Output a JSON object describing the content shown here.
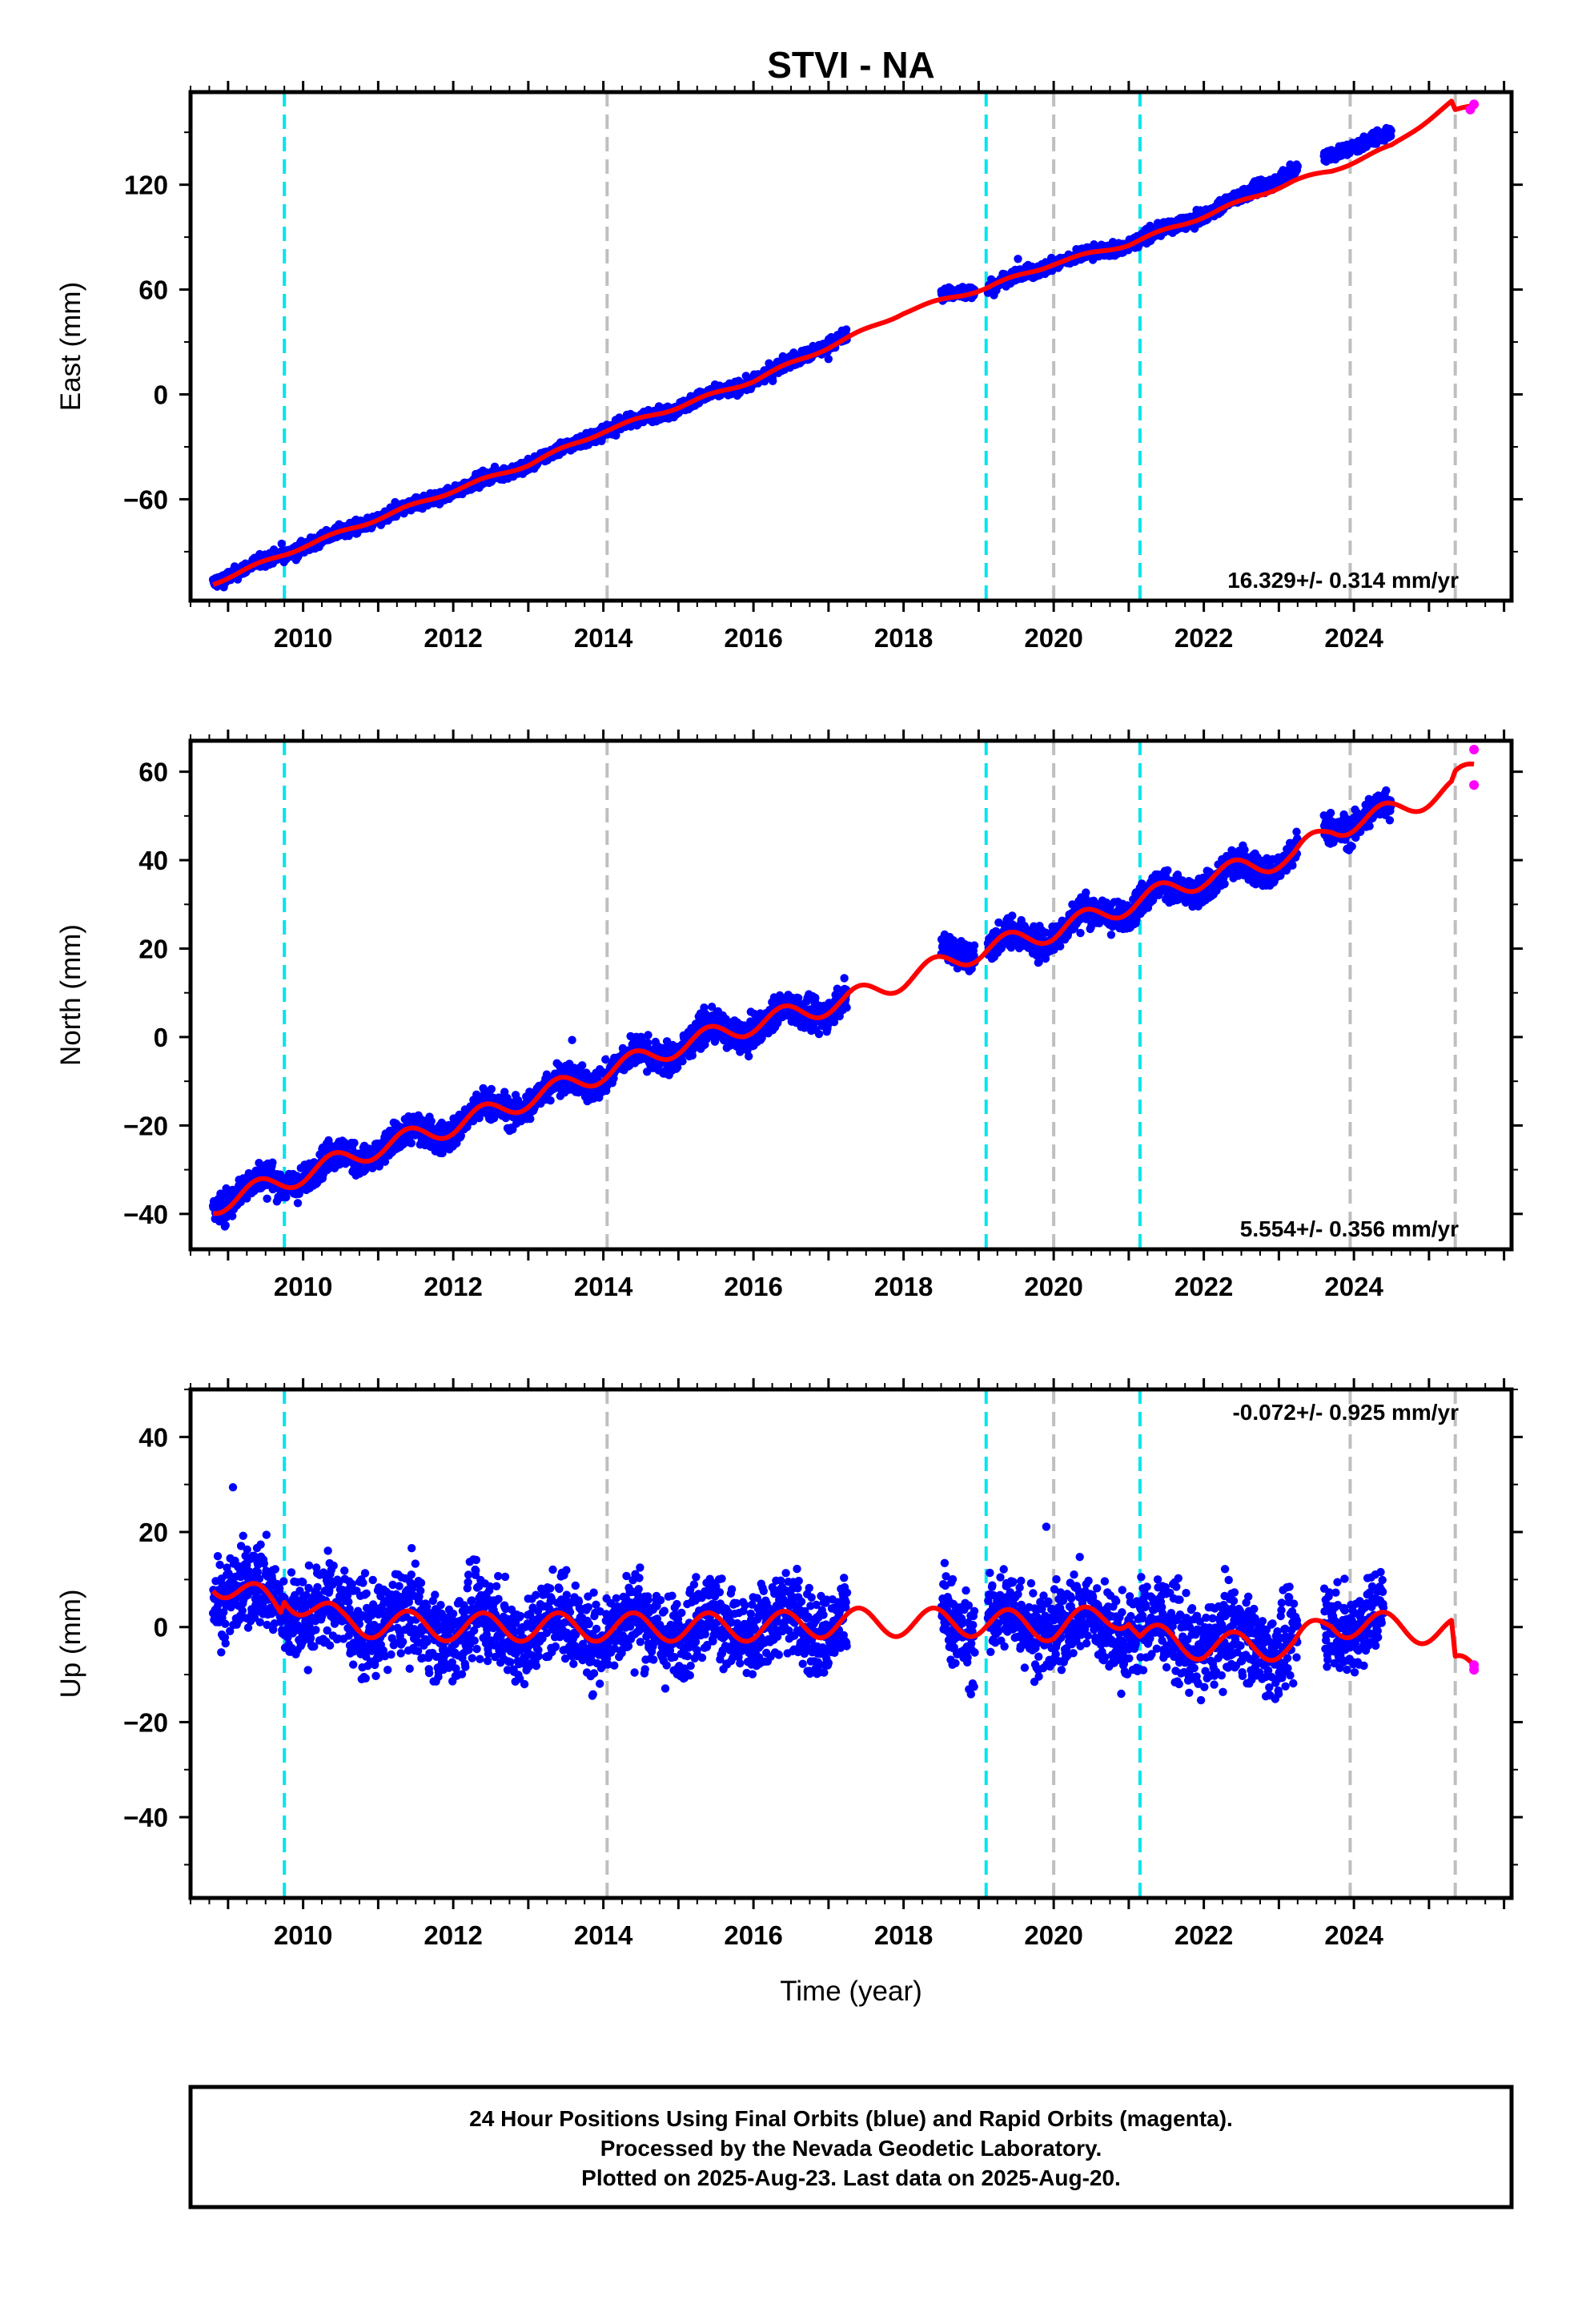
{
  "title": "STVI - NA",
  "xlabel": "Time (year)",
  "footer": {
    "line1": "24 Hour Positions Using Final Orbits (blue) and Rapid Orbits (magenta).",
    "line2": "Processed by the Nevada Geodetic Laboratory.",
    "line3": "Plotted on 2025-Aug-23. Last data on 2025-Aug-20."
  },
  "colors": {
    "final": "#0000ff",
    "rapid": "#ff00ff",
    "model": "#ff0000",
    "equipment_change": "#00e5ee",
    "earthquake": "#bfbfbf"
  },
  "chart_data": [
    {
      "type": "scatter",
      "component": "East",
      "ylabel": "East (mm)",
      "xlim": [
        2008.5,
        2026.1
      ],
      "ylim": [
        -118,
        173
      ],
      "yticks": [
        -60,
        0,
        60,
        120
      ],
      "xticks": [
        2010,
        2012,
        2014,
        2016,
        2018,
        2020,
        2022,
        2024
      ],
      "rate": "16.329+/- 0.314 mm/yr",
      "rate_position": "bottom-right",
      "series": [
        {
          "role": "final",
          "x": [
            2008.8,
            2010.0,
            2011.0,
            2012.0,
            2013.0,
            2014.0,
            2015.0,
            2016.0,
            2017.2,
            2018.6,
            2019.1,
            2020.0,
            2021.0,
            2022.0,
            2023.2,
            2023.7,
            2024.5
          ],
          "y": [
            -107,
            -87,
            -71,
            -55,
            -40,
            -21,
            -7,
            8,
            33,
            58,
            61,
            75,
            86,
            103,
            128,
            138,
            149
          ],
          "noise": 2.6
        },
        {
          "role": "rapid",
          "x": [
            2025.55,
            2025.6
          ],
          "y": [
            163,
            166
          ]
        },
        {
          "role": "model",
          "x": [
            2008.8,
            2010.0,
            2011.0,
            2012.0,
            2013.0,
            2014.0,
            2015.0,
            2016.0,
            2017.2,
            2018.0,
            2018.6,
            2019.1,
            2020.0,
            2021.0,
            2022.0,
            2023.2,
            2023.7,
            2024.5,
            2025.3,
            2025.35,
            2025.6
          ],
          "y": [
            -108,
            -87,
            -71,
            -55,
            -40,
            -21,
            -7,
            8,
            31,
            47,
            55,
            61,
            75,
            86,
            102,
            122,
            128,
            142,
            167,
            162,
            165
          ],
          "seasonal": 1.0
        }
      ],
      "equipment_changes": [
        2009.75,
        2019.1,
        2021.15
      ],
      "earthquakes": [
        2014.05,
        2020.0,
        2023.95,
        2025.35
      ]
    },
    {
      "type": "scatter",
      "component": "North",
      "ylabel": "North (mm)",
      "xlim": [
        2008.5,
        2026.1
      ],
      "ylim": [
        -48,
        67
      ],
      "yticks": [
        -40,
        -20,
        0,
        20,
        40,
        60
      ],
      "xticks": [
        2010,
        2012,
        2014,
        2016,
        2018,
        2020,
        2022,
        2024
      ],
      "rate": "5.554+/- 0.356 mm/yr",
      "rate_position": "bottom-right",
      "series": [
        {
          "role": "final",
          "x": [
            2008.8,
            2010.0,
            2011.0,
            2012.0,
            2013.0,
            2014.0,
            2015.0,
            2016.0,
            2017.2,
            2018.6,
            2019.1,
            2020.0,
            2021.0,
            2022.0,
            2023.2,
            2023.7,
            2024.5
          ],
          "y": [
            -37,
            -31,
            -25,
            -20,
            -14,
            -8,
            -2,
            3,
            8,
            20,
            20,
            24,
            30,
            35,
            41,
            48,
            51
          ],
          "noise": 2.5
        },
        {
          "role": "rapid",
          "x": [
            2025.6,
            2025.6
          ],
          "y": [
            57,
            65
          ]
        },
        {
          "role": "model",
          "x": [
            2008.8,
            2010.0,
            2011.0,
            2012.0,
            2013.0,
            2014.0,
            2015.0,
            2016.0,
            2017.2,
            2018.0,
            2018.6,
            2019.1,
            2020.0,
            2021.0,
            2022.0,
            2023.2,
            2023.7,
            2024.5,
            2025.3,
            2025.35,
            2025.6
          ],
          "y": [
            -38,
            -31,
            -25,
            -20,
            -14,
            -8,
            -2,
            3,
            8,
            13,
            17,
            20,
            24,
            30,
            36,
            41,
            47,
            51,
            56,
            58,
            61
          ],
          "seasonal": 2.3
        }
      ],
      "equipment_changes": [
        2009.75,
        2019.1,
        2021.15
      ],
      "earthquakes": [
        2014.05,
        2020.0,
        2023.95,
        2025.35
      ]
    },
    {
      "type": "scatter",
      "component": "Up",
      "ylabel": "Up (mm)",
      "xlim": [
        2008.5,
        2026.1
      ],
      "ylim": [
        -57,
        50
      ],
      "yticks": [
        -40,
        -20,
        0,
        20,
        40
      ],
      "xticks": [
        2010,
        2012,
        2014,
        2016,
        2018,
        2020,
        2022,
        2024
      ],
      "rate": "-0.072+/- 0.925 mm/yr",
      "rate_position": "top-right",
      "series": [
        {
          "role": "final",
          "x": [
            2008.8,
            2009.7,
            2010.5,
            2012.0,
            2014.0,
            2016.0,
            2017.2,
            2018.55,
            2018.85,
            2019.1,
            2020.0,
            2021.0,
            2022.0,
            2023.2,
            2023.7,
            2024.4
          ],
          "y": [
            9,
            5,
            2,
            0,
            0,
            0,
            1,
            2,
            0,
            1,
            1,
            0,
            -3,
            -3,
            2,
            1
          ],
          "noise": 6.5
        },
        {
          "role": "rapid",
          "x": [
            2025.6,
            2025.6
          ],
          "y": [
            -8,
            -9
          ]
        },
        {
          "role": "model",
          "x": [
            2008.8,
            2009.7,
            2009.75,
            2010.5,
            2012.0,
            2014.0,
            2016.0,
            2017.2,
            2018.0,
            2019.1,
            2020.0,
            2021.0,
            2021.15,
            2022.0,
            2023.2,
            2023.7,
            2024.5,
            2025.3,
            2025.35,
            2025.6
          ],
          "y": [
            10,
            4,
            7,
            1,
            0,
            0,
            0,
            1,
            1,
            1,
            0,
            3,
            -2,
            -4,
            -4,
            1,
            0,
            -1,
            -9,
            -9
          ],
          "seasonal": 3.0
        }
      ],
      "equipment_changes": [
        2009.75,
        2019.1,
        2021.15
      ],
      "earthquakes": [
        2014.05,
        2020.0,
        2023.95,
        2025.35
      ]
    }
  ]
}
